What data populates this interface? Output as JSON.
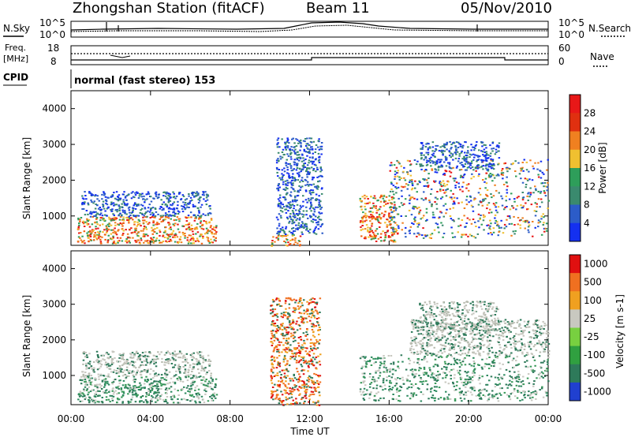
{
  "header": {
    "station": "Zhongshan Station (fitACF)",
    "beam": "Beam 11",
    "date": "05/Nov/2010"
  },
  "noise_panel": {
    "left_label": "N.Sky",
    "right_label": "N.Search",
    "left_ticks": [
      "10^5",
      "10^0"
    ],
    "right_ticks": [
      "10^5",
      "10^0"
    ]
  },
  "freq_panel": {
    "left_label_line1": "Freq.",
    "left_label_line2": "[MHz]",
    "left_ticks": [
      "18",
      "8"
    ],
    "right_ticks": [
      "60",
      "0"
    ],
    "right_label": "Nave"
  },
  "cpid": {
    "label": "CPID",
    "value": "normal (fast stereo) 153"
  },
  "chart_data": [
    {
      "type": "heatmap",
      "name": "Power",
      "ylabel": "Slant Range [km]",
      "ylim": [
        180,
        4500
      ],
      "yticks": [
        "1000",
        "2000",
        "3000",
        "4000"
      ],
      "ytick_values": [
        1000,
        2000,
        3000,
        4000
      ],
      "xlim_hours": [
        0,
        24
      ],
      "colorbar": {
        "label": "Power [dB]",
        "ticks": [
          "4",
          "8",
          "12",
          "16",
          "20",
          "24",
          "28"
        ],
        "colors": [
          "#1430f0",
          "#2c5cc8",
          "#3a8a6e",
          "#2e9e5a",
          "#f0c030",
          "#f08020",
          "#e03010",
          "#e81818"
        ]
      },
      "echo_regions": [
        {
          "t": [
            0.3,
            7.3
          ],
          "r": [
            250,
            1000
          ],
          "level": "high"
        },
        {
          "t": [
            0.5,
            7.0
          ],
          "r": [
            1000,
            1700
          ],
          "level": "low"
        },
        {
          "t": [
            10.0,
            11.5
          ],
          "r": [
            180,
            500
          ],
          "level": "high"
        },
        {
          "t": [
            10.3,
            12.6
          ],
          "r": [
            500,
            3200
          ],
          "level": "low"
        },
        {
          "t": [
            14.5,
            16.3
          ],
          "r": [
            300,
            1600
          ],
          "level": "high"
        },
        {
          "t": [
            16.0,
            24.0
          ],
          "r": [
            400,
            2600
          ],
          "level": "mixed"
        },
        {
          "t": [
            17.5,
            21.5
          ],
          "r": [
            2300,
            3100
          ],
          "level": "low"
        }
      ]
    },
    {
      "type": "heatmap",
      "name": "Velocity",
      "ylabel": "Slant Range [km]",
      "ylim": [
        180,
        4500
      ],
      "yticks": [
        "1000",
        "2000",
        "3000",
        "4000"
      ],
      "ytick_values": [
        1000,
        2000,
        3000,
        4000
      ],
      "xlim_hours": [
        0,
        24
      ],
      "xticks": [
        "00:00",
        "04:00",
        "08:00",
        "12:00",
        "16:00",
        "20:00",
        "00:00"
      ],
      "xlabel": "Time UT",
      "colorbar": {
        "label": "Velocity [m s-1]",
        "ticks": [
          "1000",
          "500",
          "100",
          "25",
          "-25",
          "-100",
          "-500",
          "-1000"
        ],
        "colors": [
          "#2040d0",
          "#2e7a5a",
          "#30a040",
          "#78d040",
          "#c8c8c0",
          "#f0a020",
          "#f07020",
          "#e01010"
        ]
      },
      "echo_regions": [
        {
          "t": [
            0.3,
            7.3
          ],
          "r": [
            250,
            1000
          ],
          "level": "green"
        },
        {
          "t": [
            0.5,
            7.0
          ],
          "r": [
            1000,
            1700
          ],
          "level": "grey"
        },
        {
          "t": [
            10.0,
            12.5
          ],
          "r": [
            180,
            3200
          ],
          "level": "orange"
        },
        {
          "t": [
            14.5,
            24.0
          ],
          "r": [
            300,
            1600
          ],
          "level": "green"
        },
        {
          "t": [
            17.0,
            24.0
          ],
          "r": [
            1600,
            2600
          ],
          "level": "grey"
        },
        {
          "t": [
            17.5,
            21.5
          ],
          "r": [
            2300,
            3100
          ],
          "level": "grey"
        }
      ]
    }
  ]
}
